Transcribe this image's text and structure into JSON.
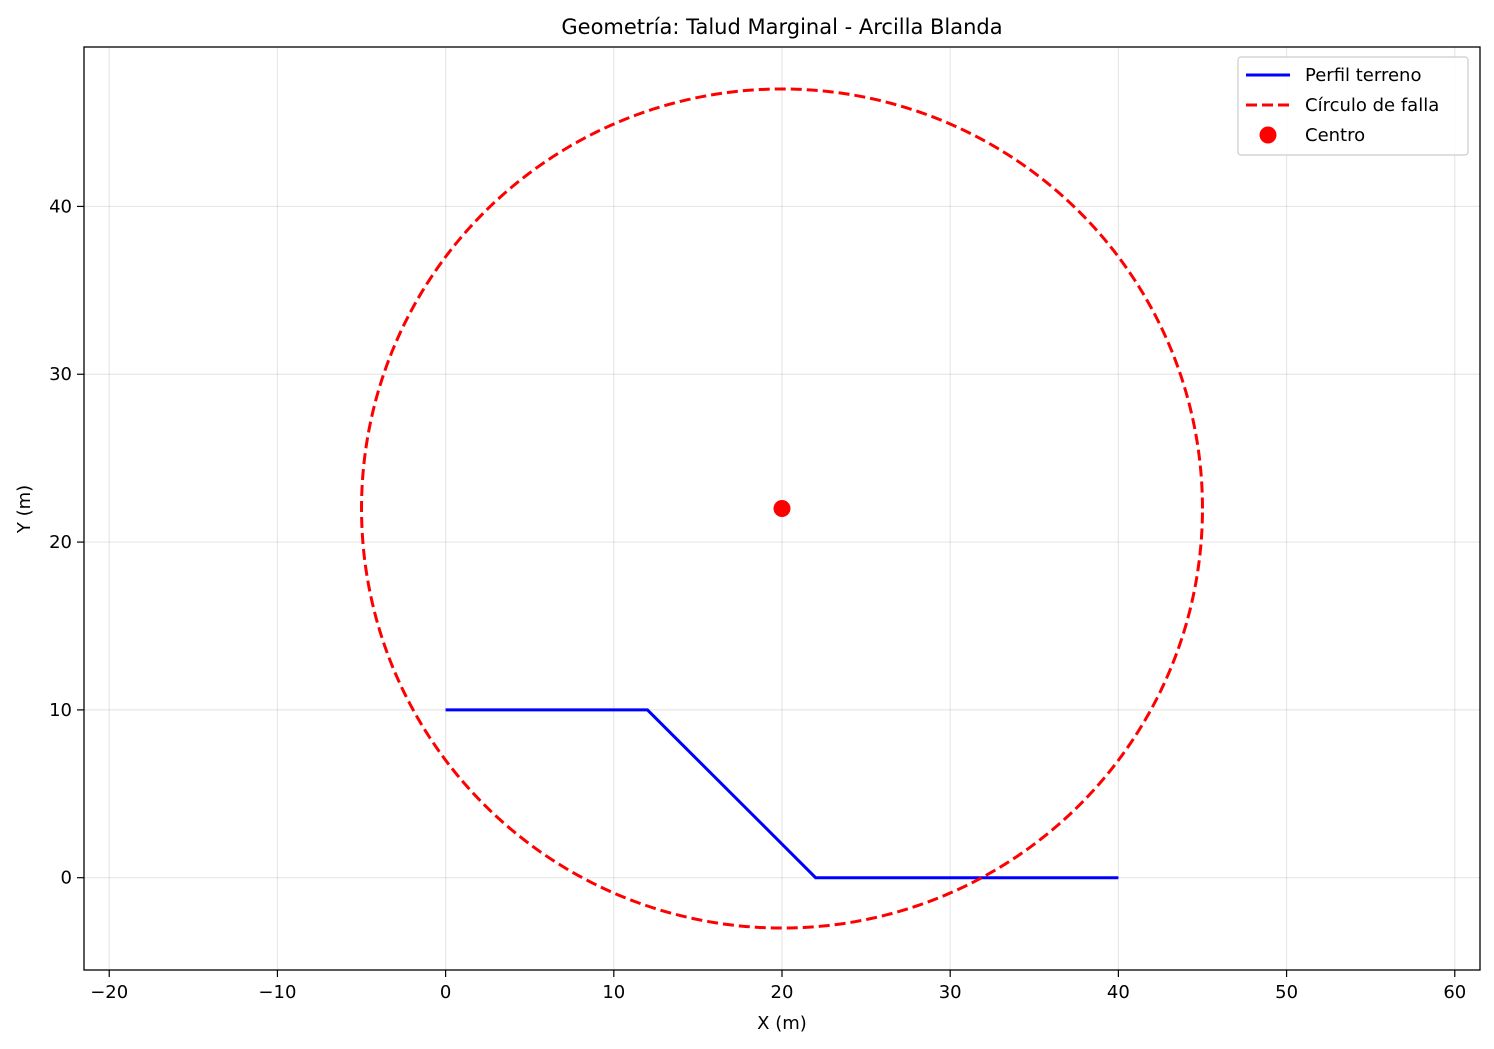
{
  "chart_data": {
    "type": "line",
    "title": "Geometría: Talud Marginal - Arcilla Blanda",
    "xlabel": "X (m)",
    "ylabel": "Y (m)",
    "xlim": [
      -21.5,
      61.5
    ],
    "ylim": [
      -5.5,
      49.5
    ],
    "xticks": [
      -20,
      -10,
      0,
      10,
      20,
      30,
      40,
      50,
      60
    ],
    "xtick_labels": [
      "−20",
      "−10",
      "0",
      "10",
      "20",
      "30",
      "40",
      "50",
      "60"
    ],
    "yticks": [
      0,
      10,
      20,
      30,
      40
    ],
    "ytick_labels": [
      "0",
      "10",
      "20",
      "30",
      "40"
    ],
    "grid": true,
    "legend_position": "top-right",
    "series": [
      {
        "name": "Perfil terreno",
        "kind": "line",
        "color": "#0000ff",
        "style": "solid",
        "x": [
          0,
          12,
          22,
          40
        ],
        "y": [
          10,
          10,
          0,
          0
        ]
      },
      {
        "name": "Círculo de falla",
        "kind": "circle",
        "color": "#ff0000",
        "style": "dashed",
        "center": [
          20,
          22
        ],
        "radius": 25
      },
      {
        "name": "Centro",
        "kind": "point",
        "color": "#ff0000",
        "x": [
          20
        ],
        "y": [
          22
        ]
      }
    ]
  }
}
